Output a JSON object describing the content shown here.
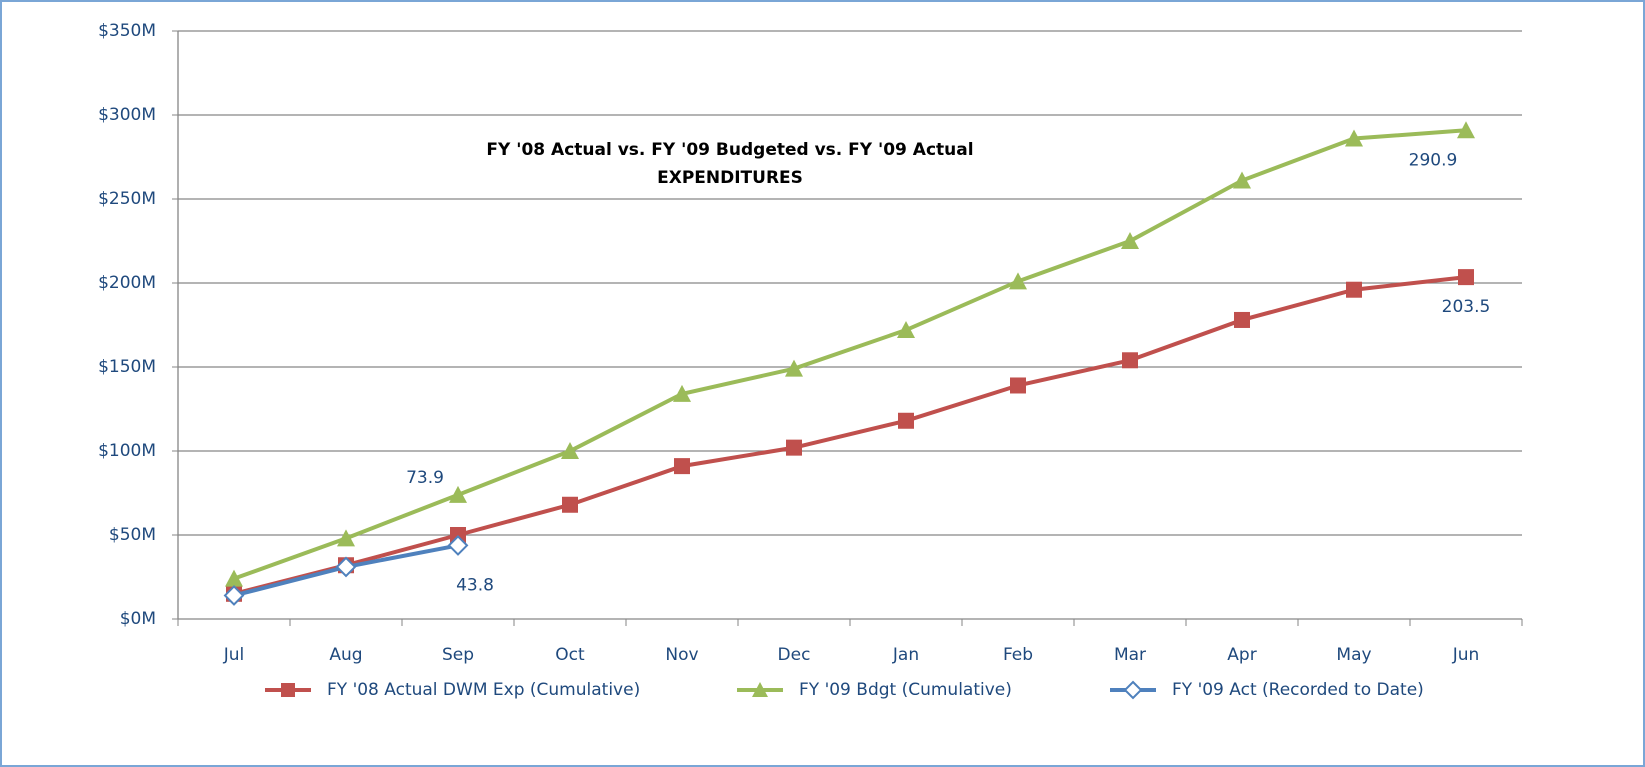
{
  "chart_data": {
    "type": "line",
    "title": [
      "FY '08 Actual vs. FY '09 Budgeted vs. FY '09 Actual",
      "EXPENDITURES"
    ],
    "categories": [
      "Jul",
      "Aug",
      "Sep",
      "Oct",
      "Nov",
      "Dec",
      "Jan",
      "Feb",
      "Mar",
      "Apr",
      "May",
      "Jun"
    ],
    "series": [
      {
        "name": "FY '08 Actual DWM Exp (Cumulative)",
        "color": "#c0504d",
        "marker": "square",
        "values": [
          15,
          32,
          50,
          68,
          91,
          102,
          118,
          139,
          154,
          178,
          196,
          203.5
        ],
        "value_labels": [
          null,
          null,
          null,
          null,
          null,
          null,
          null,
          null,
          null,
          null,
          null,
          "203.5"
        ]
      },
      {
        "name": "FY '09 Bdgt (Cumulative)",
        "color": "#9bbb59",
        "marker": "triangle",
        "values": [
          24,
          48,
          73.9,
          100,
          134,
          149,
          172,
          201,
          225,
          261,
          286,
          290.9
        ],
        "value_labels": [
          null,
          null,
          "73.9",
          null,
          null,
          null,
          null,
          null,
          null,
          null,
          null,
          "290.9"
        ]
      },
      {
        "name": "FY '09 Act (Recorded to Date)",
        "color": "#4f81bd",
        "marker": "diamond",
        "values": [
          14,
          31,
          43.8,
          null,
          null,
          null,
          null,
          null,
          null,
          null,
          null,
          null
        ],
        "value_labels": [
          null,
          null,
          "43.8",
          null,
          null,
          null,
          null,
          null,
          null,
          null,
          null,
          null
        ]
      }
    ],
    "ylim": [
      0,
      350
    ],
    "yticks": [
      {
        "value": 0,
        "label": "$0M"
      },
      {
        "value": 50,
        "label": "$50M"
      },
      {
        "value": 100,
        "label": "$100M"
      },
      {
        "value": 150,
        "label": "$150M"
      },
      {
        "value": 200,
        "label": "$200M"
      },
      {
        "value": 250,
        "label": "$250M"
      },
      {
        "value": 300,
        "label": "$300M"
      },
      {
        "value": 350,
        "label": "$350M"
      }
    ],
    "grid": true,
    "legend": "bottom"
  }
}
